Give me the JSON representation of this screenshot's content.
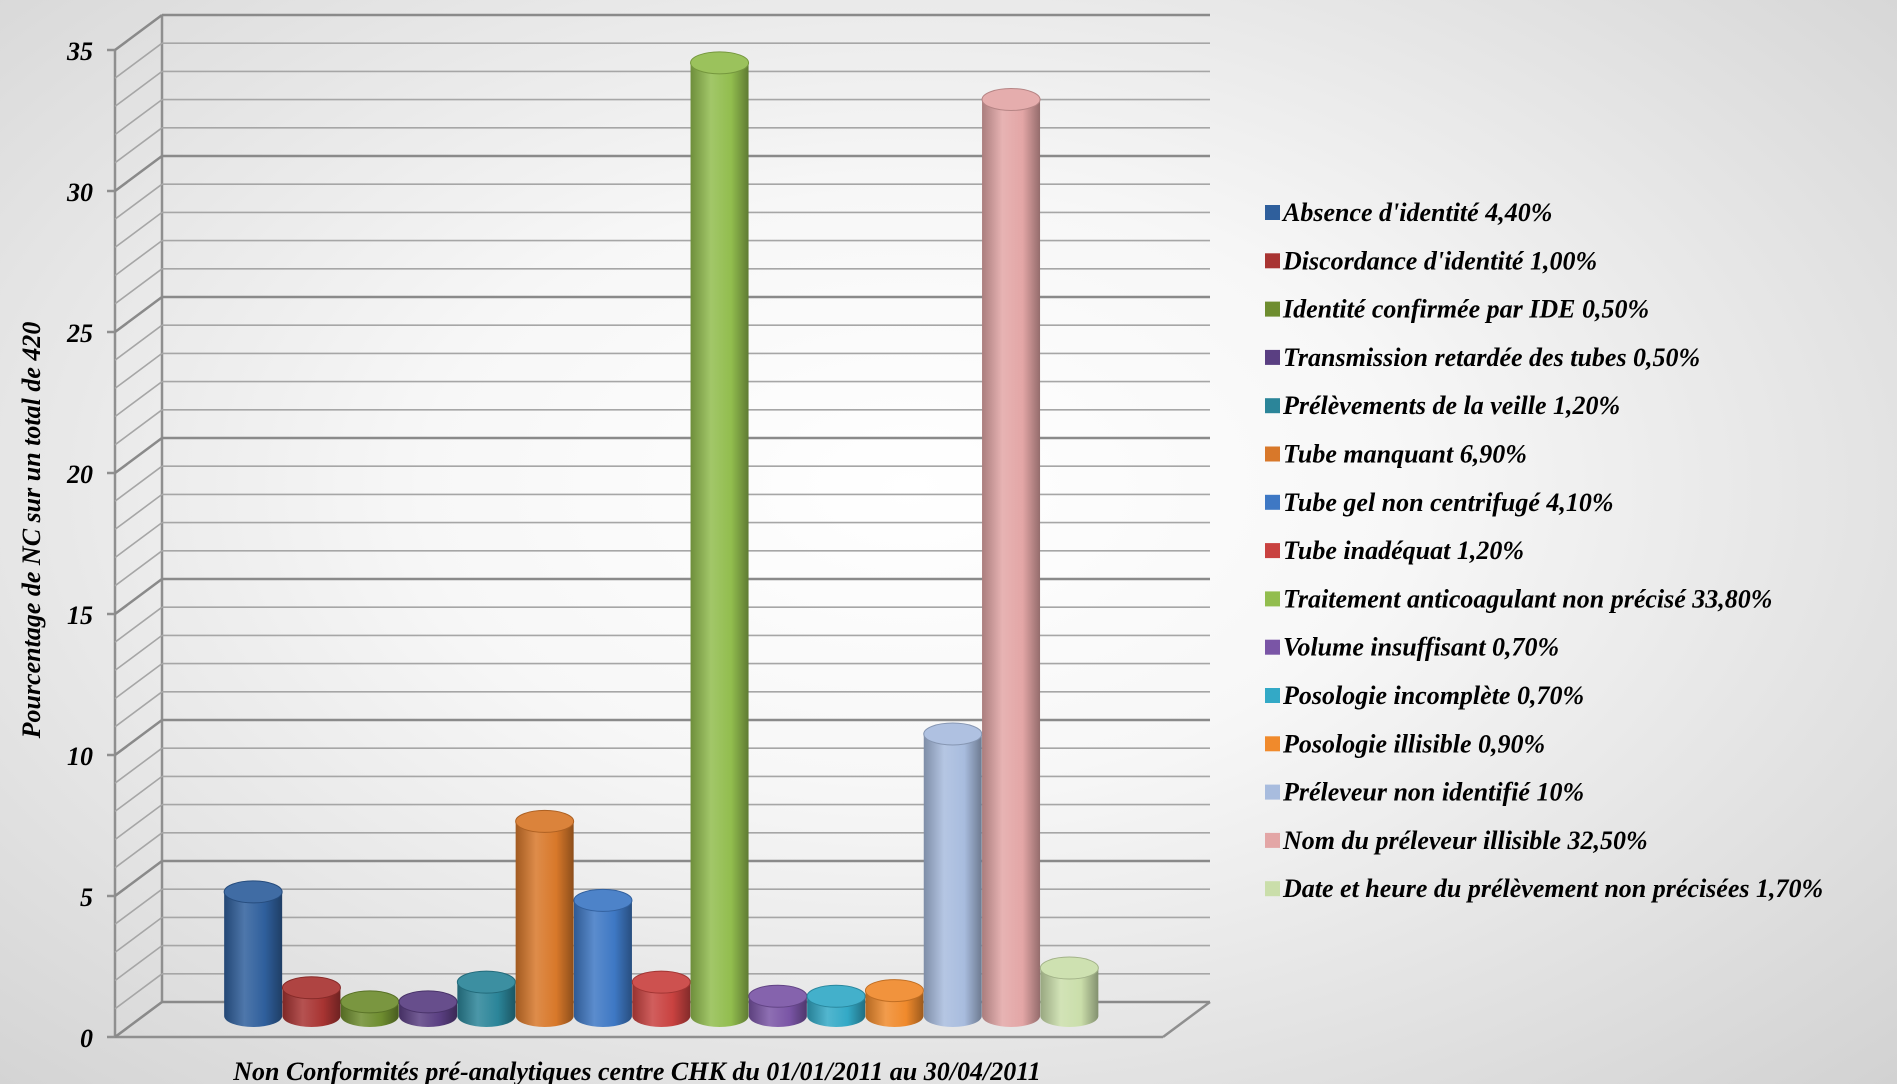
{
  "chart_data": {
    "type": "bar",
    "xlabel": "Non Conformités pré-analytiques centre CHK du 01/01/2011 au 30/04/2011",
    "ylabel": "Pourcentage de NC sur un total de 420",
    "ylim": [
      0,
      35
    ],
    "yticks": [
      "0",
      "5",
      "10",
      "15",
      "20",
      "25",
      "30",
      "35"
    ],
    "grid": true,
    "legend_position": "right",
    "series": [
      {
        "name": "Absence d'identité 4,40%",
        "value": 4.4,
        "color": "#2f5f9c"
      },
      {
        "name": "Discordance d'identité 1,00%",
        "value": 1.0,
        "color": "#a83432"
      },
      {
        "name": "Identité confirmée par IDE 0,50%",
        "value": 0.5,
        "color": "#6e8d2f"
      },
      {
        "name": "Transmission retardée des tubes 0,50%",
        "value": 0.5,
        "color": "#5a3f82"
      },
      {
        "name": "Prélèvements de la veille 1,20%",
        "value": 1.2,
        "color": "#2b8599"
      },
      {
        "name": "Tube manquant 6,90%",
        "value": 6.9,
        "color": "#d8782a"
      },
      {
        "name": "Tube gel non centrifugé 4,10%",
        "value": 4.1,
        "color": "#3e78c4"
      },
      {
        "name": "Tube inadéquat 1,20%",
        "value": 1.2,
        "color": "#c94240"
      },
      {
        "name": "Traitement anticoagulant non précisé 33,80%",
        "value": 33.8,
        "color": "#92bd4e"
      },
      {
        "name": "Volume insuffisant 0,70%",
        "value": 0.7,
        "color": "#7a55a6"
      },
      {
        "name": "Posologie incomplète 0,70%",
        "value": 0.7,
        "color": "#33a9c6"
      },
      {
        "name": "Posologie illisible 0,90%",
        "value": 0.9,
        "color": "#f08a2c"
      },
      {
        "name": "Préleveur non identifié 10%",
        "value": 10.0,
        "color": "#a8bcde"
      },
      {
        "name": "Nom du préleveur illisible 32,50%",
        "value": 32.5,
        "color": "#e3a6a6"
      },
      {
        "name": "Date et heure du prélèvement non précisées 1,70%",
        "value": 1.7,
        "color": "#cadeaa"
      }
    ]
  }
}
